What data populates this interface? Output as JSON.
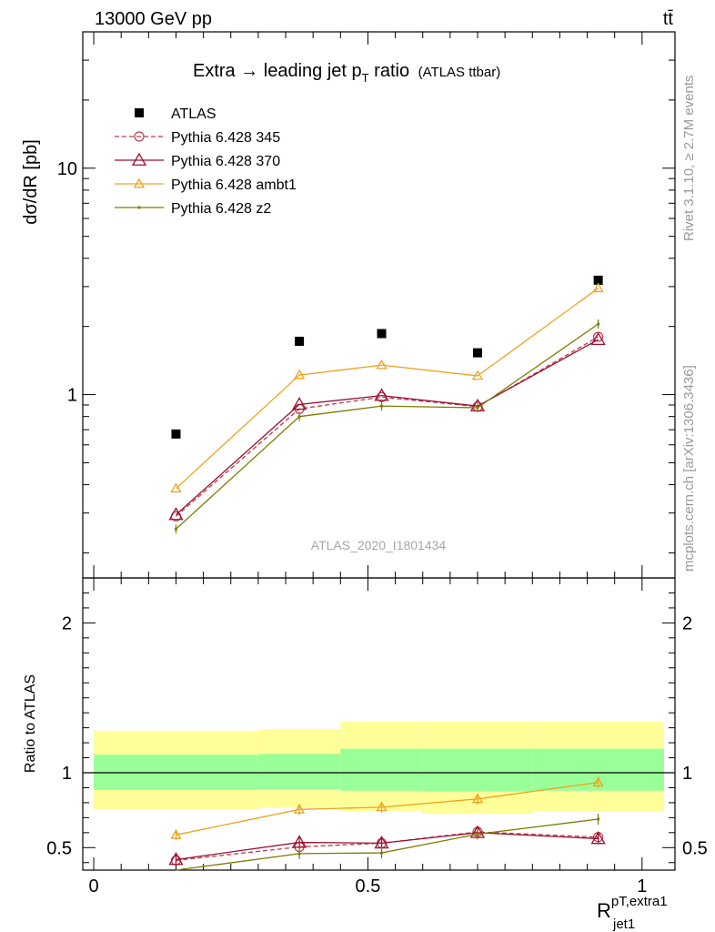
{
  "header": {
    "left": "13000 GeV pp",
    "right": "tt̄"
  },
  "side": {
    "rivet": "Rivet 3.1.10, ≥ 2.7M events",
    "mcplots": "mcplots.cern.ch [arXiv:1306.3436]"
  },
  "chart_data": [
    {
      "type": "line",
      "panel": "main",
      "title": "Extra → leading jet p",
      "title_sub": "T",
      "title_tail": " ratio",
      "title_small": "(ATLAS ttbar)",
      "ylabel": "dσ/dR [pb]",
      "yscale": "log",
      "ylim": [
        0.155,
        40
      ],
      "xlim": [
        -0.02,
        1.06
      ],
      "yticks": [
        {
          "v": 1,
          "label": "1"
        },
        {
          "v": 10,
          "label": "10"
        }
      ],
      "watermark": "ATLAS_2020_I1801434",
      "x": [
        0.15,
        0.375,
        0.525,
        0.7,
        0.92
      ],
      "series": [
        {
          "name": "ATLAS",
          "style": "data",
          "color": "#000000",
          "values": [
            0.67,
            1.72,
            1.86,
            1.53,
            3.2
          ]
        },
        {
          "name": "Pythia 6.428 345",
          "style": "dash-circle",
          "color": "#c0394b",
          "values": [
            0.29,
            0.865,
            0.975,
            0.885,
            1.8
          ]
        },
        {
          "name": "Pythia 6.428 370",
          "style": "solid-triangle",
          "color": "#9b1030",
          "values": [
            0.295,
            0.905,
            0.99,
            0.89,
            1.75
          ]
        },
        {
          "name": "Pythia 6.428 ambt1",
          "style": "solid-open-triangle",
          "color": "#f0a21c",
          "values": [
            0.385,
            1.22,
            1.35,
            1.21,
            2.95
          ]
        },
        {
          "name": "Pythia 6.428 z2",
          "style": "solid-dot",
          "color": "#7d7d00",
          "values": [
            0.255,
            0.8,
            0.89,
            0.875,
            2.05
          ]
        }
      ]
    },
    {
      "type": "line",
      "panel": "ratio",
      "ylabel": "Ratio to ATLAS",
      "xlabel": "R",
      "xlabel_sup": "pT,extra1",
      "xlabel_sub": "jet1",
      "ylim": [
        0.35,
        2.3
      ],
      "xlim": [
        -0.02,
        1.06
      ],
      "yticks": [
        {
          "v": 0.5,
          "label": "0.5"
        },
        {
          "v": 1,
          "label": "1"
        },
        {
          "v": 2,
          "label": "2"
        }
      ],
      "xticks": [
        {
          "v": 0,
          "label": "0"
        },
        {
          "v": 0.5,
          "label": "0.5"
        },
        {
          "v": 1,
          "label": "1"
        }
      ],
      "bands": [
        {
          "x0": 0.0,
          "x1": 0.3,
          "inner": [
            0.885,
            1.12
          ],
          "outer": [
            0.755,
            1.28
          ]
        },
        {
          "x0": 0.3,
          "x1": 0.45,
          "inner": [
            0.89,
            1.125
          ],
          "outer": [
            0.77,
            1.29
          ]
        },
        {
          "x0": 0.45,
          "x1": 0.6,
          "inner": [
            0.88,
            1.16
          ],
          "outer": [
            0.745,
            1.34
          ]
        },
        {
          "x0": 0.6,
          "x1": 0.8,
          "inner": [
            0.875,
            1.16
          ],
          "outer": [
            0.725,
            1.34
          ]
        },
        {
          "x0": 0.8,
          "x1": 1.04,
          "inner": [
            0.88,
            1.16
          ],
          "outer": [
            0.745,
            1.34
          ]
        }
      ],
      "x": [
        0.15,
        0.375,
        0.525,
        0.7,
        0.92
      ],
      "series": [
        {
          "name": "Pythia 6.428 345",
          "style": "dash-circle",
          "color": "#c0394b",
          "values": [
            0.415,
            0.505,
            0.53,
            0.605,
            0.57
          ]
        },
        {
          "name": "Pythia 6.428 370",
          "style": "solid-triangle",
          "color": "#9b1030",
          "values": [
            0.42,
            0.535,
            0.53,
            0.6,
            0.56
          ]
        },
        {
          "name": "Pythia 6.428 ambt1",
          "style": "solid-open-triangle",
          "color": "#f0a21c",
          "values": [
            0.585,
            0.755,
            0.77,
            0.825,
            0.935
          ]
        },
        {
          "name": "Pythia 6.428 z2",
          "style": "solid-dot",
          "color": "#7d7d00",
          "values": [
            0.335,
            0.46,
            0.465,
            0.59,
            0.69
          ]
        }
      ]
    }
  ]
}
